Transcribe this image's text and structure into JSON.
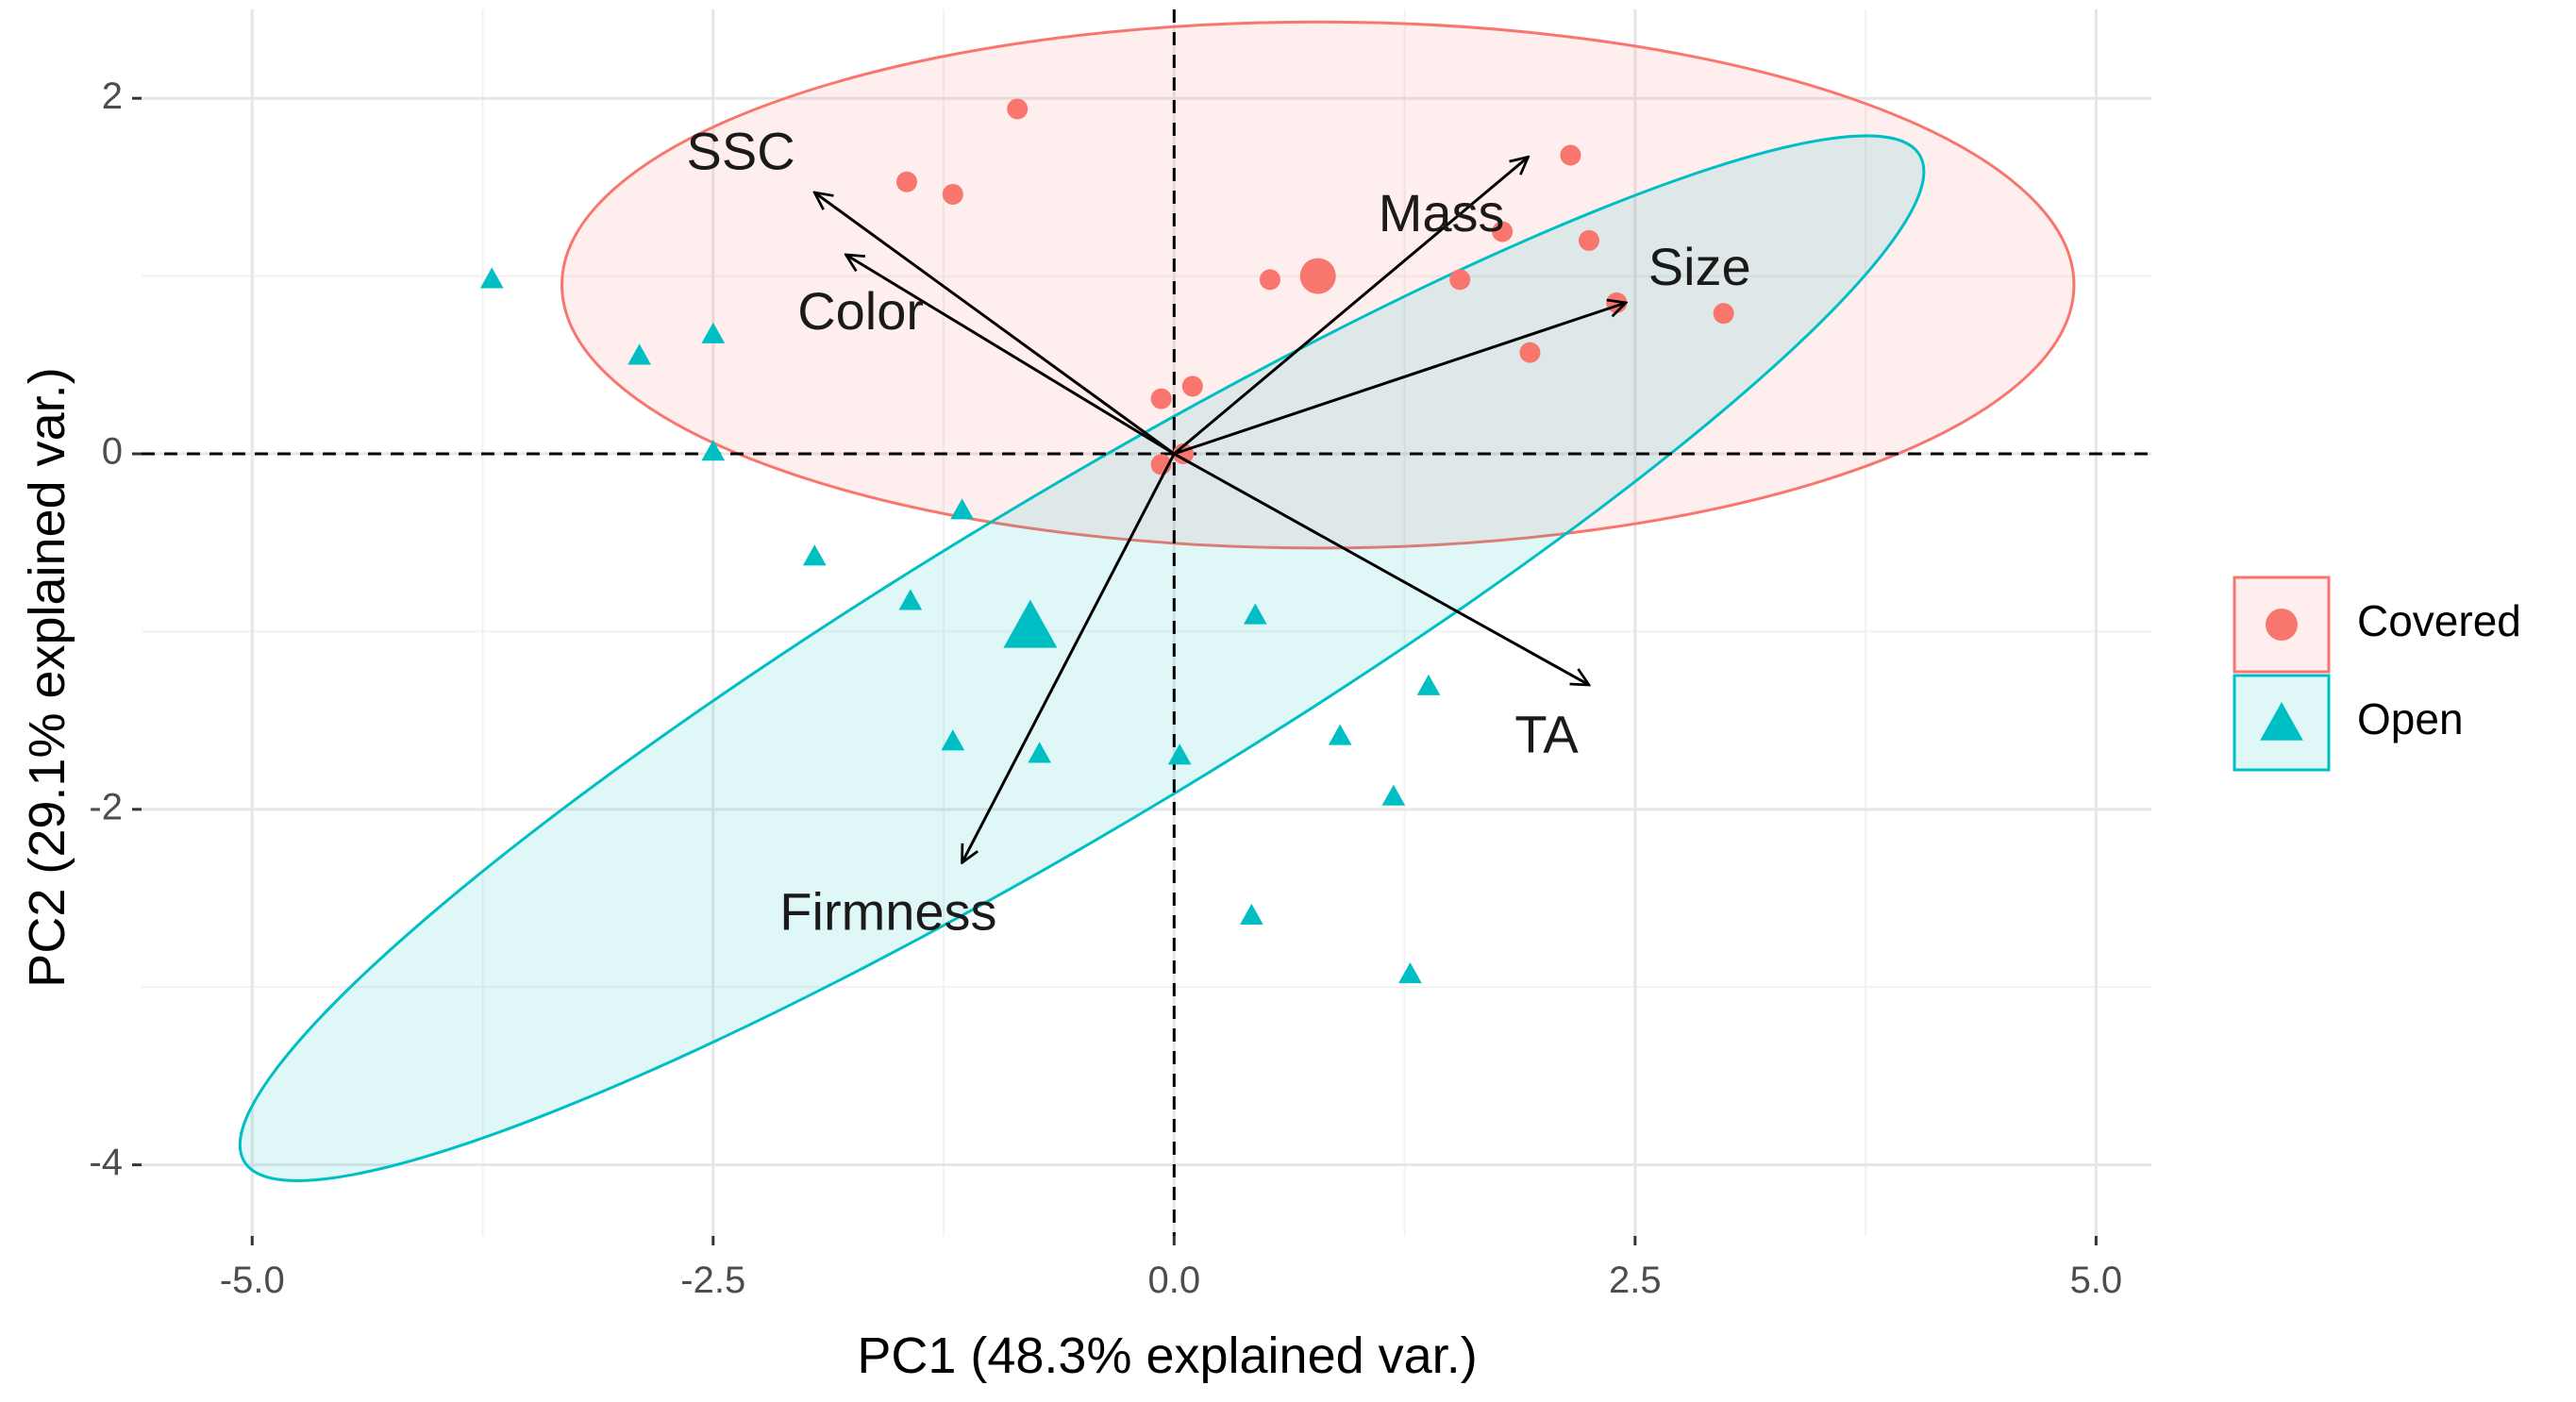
{
  "chart_data": {
    "type": "scatter",
    "subtype": "pca-biplot",
    "title": "",
    "xlabel": "PC1 (48.3% explained var.)",
    "ylabel": "PC2 (29.1% explained var.)",
    "xlim": [
      -5.6,
      5.3
    ],
    "ylim": [
      -4.4,
      2.5
    ],
    "x_ticks": [
      -5.0,
      -2.5,
      0.0,
      2.5,
      5.0
    ],
    "x_tick_labels": [
      "-5.0",
      "-2.5",
      "0.0",
      "2.5",
      "5.0"
    ],
    "y_ticks": [
      -4,
      -2,
      0,
      2
    ],
    "y_tick_labels": [
      "-4",
      "-2",
      "0",
      "2"
    ],
    "grid": true,
    "legend": {
      "position": "right",
      "entries": [
        {
          "name": "Covered",
          "color": "#F8766D",
          "shape": "circle"
        },
        {
          "name": "Open",
          "color": "#00BFC4",
          "shape": "triangle"
        }
      ]
    },
    "series": [
      {
        "name": "Covered",
        "color": "#F8766D",
        "shape": "circle",
        "points": [
          {
            "x": -0.85,
            "y": 1.94
          },
          {
            "x": -1.45,
            "y": 1.53
          },
          {
            "x": -1.2,
            "y": 1.46
          },
          {
            "x": 0.52,
            "y": 0.98
          },
          {
            "x": 1.55,
            "y": 0.98
          },
          {
            "x": 1.78,
            "y": 1.25
          },
          {
            "x": 2.15,
            "y": 1.68
          },
          {
            "x": 2.25,
            "y": 1.2
          },
          {
            "x": 2.4,
            "y": 0.85
          },
          {
            "x": 2.98,
            "y": 0.79
          },
          {
            "x": 1.93,
            "y": 0.57
          },
          {
            "x": 0.1,
            "y": 0.38
          },
          {
            "x": -0.07,
            "y": 0.31
          },
          {
            "x": -0.07,
            "y": -0.06
          },
          {
            "x": 0.05,
            "y": 0.0
          }
        ],
        "centroid": {
          "x": 0.78,
          "y": 1.0
        },
        "ellipse": {
          "cx": 0.78,
          "cy": 0.95,
          "rx_units": 4.1,
          "ry_units": 1.48,
          "rotation_deg": 0
        }
      },
      {
        "name": "Open",
        "color": "#00BFC4",
        "shape": "triangle",
        "points": [
          {
            "x": -3.7,
            "y": 0.98
          },
          {
            "x": -2.9,
            "y": 0.55
          },
          {
            "x": -2.5,
            "y": 0.67
          },
          {
            "x": -2.5,
            "y": 0.01
          },
          {
            "x": -1.95,
            "y": -0.58
          },
          {
            "x": -1.15,
            "y": -0.32
          },
          {
            "x": -1.43,
            "y": -0.83
          },
          {
            "x": -1.2,
            "y": -1.62
          },
          {
            "x": -0.73,
            "y": -1.69
          },
          {
            "x": 0.03,
            "y": -1.7
          },
          {
            "x": 0.44,
            "y": -0.91
          },
          {
            "x": 0.9,
            "y": -1.59
          },
          {
            "x": 1.38,
            "y": -1.31
          },
          {
            "x": 1.19,
            "y": -1.93
          },
          {
            "x": 0.42,
            "y": -2.6
          },
          {
            "x": 1.28,
            "y": -2.93
          }
        ],
        "centroid": {
          "x": -0.78,
          "y": -0.98
        },
        "ellipse": {
          "cx": -0.5,
          "cy": -1.15,
          "rx_units": 5.3,
          "ry_units": 0.92,
          "rotation_deg": 31
        }
      }
    ],
    "loadings": [
      {
        "name": "SSC",
        "x": -1.95,
        "y": 1.47
      },
      {
        "name": "Color",
        "x": -1.78,
        "y": 1.12
      },
      {
        "name": "Mass",
        "x": 1.92,
        "y": 1.67
      },
      {
        "name": "Size",
        "x": 2.45,
        "y": 0.85
      },
      {
        "name": "TA",
        "x": 2.25,
        "y": -1.3
      },
      {
        "name": "Firmness",
        "x": -1.15,
        "y": -2.3
      }
    ],
    "loading_label_positions": [
      {
        "name": "SSC",
        "x": -2.35,
        "y": 1.68
      },
      {
        "name": "Color",
        "x": -1.7,
        "y": 0.78
      },
      {
        "name": "Mass",
        "x": 1.45,
        "y": 1.33
      },
      {
        "name": "Size",
        "x": 2.85,
        "y": 1.03
      },
      {
        "name": "TA",
        "x": 2.02,
        "y": -1.6
      },
      {
        "name": "Firmness",
        "x": -1.55,
        "y": -2.6
      }
    ]
  }
}
